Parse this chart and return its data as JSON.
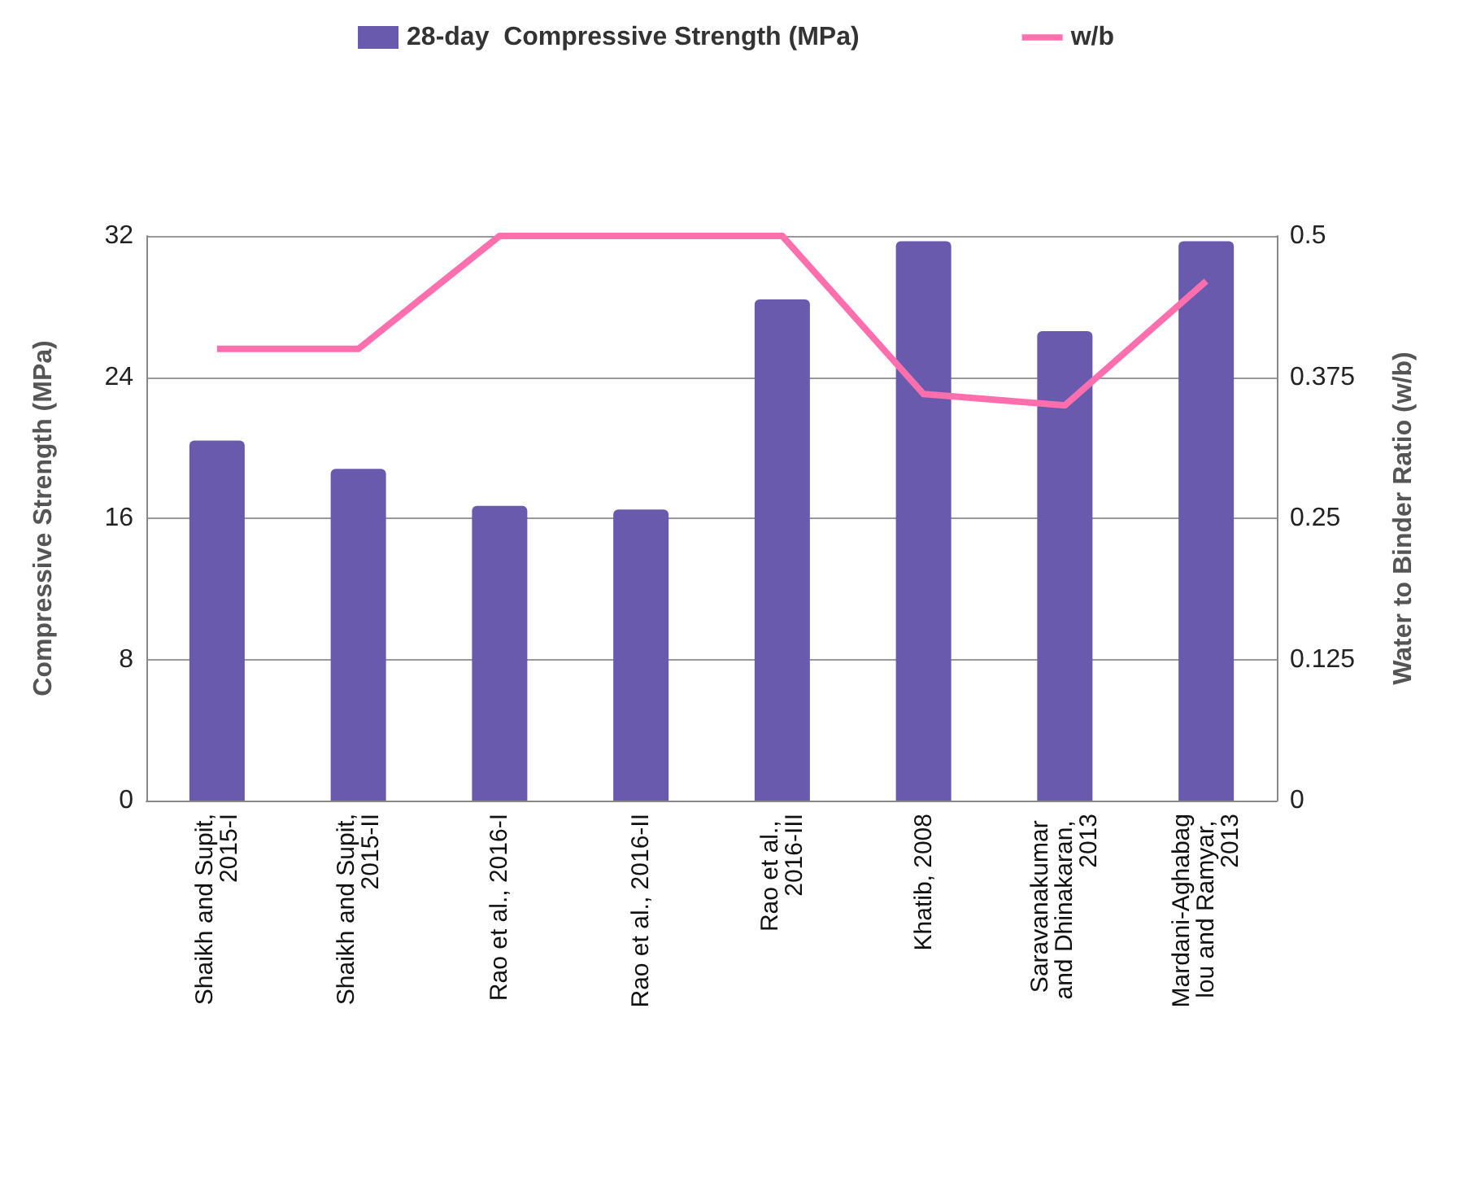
{
  "chart_data": {
    "type": "bar",
    "ylabel": "Compressive Strength (MPa)",
    "y2label": "Water to Binder Ratio (w/b)",
    "categories": [
      "Shaikh and Supit, 2015-I",
      "Shaikh and Supit, 2015-II",
      "Rao et al., 2016-I",
      "Rao et al., 2016-II",
      "Rao et al., 2016-III",
      "Khatib, 2008",
      "Saravanakumar and Dhinakaran, 2013",
      "Mardani-Aghabaglou and Ramyar, 2013"
    ],
    "series": [
      {
        "name": "28-day  Compressive Strength (MPa)",
        "color": "#6a5aad",
        "values": [
          20.4,
          18.8,
          16.7,
          16.5,
          28.4,
          31.7,
          26.6,
          31.7
        ]
      },
      {
        "name": "w/b",
        "type": "line",
        "axis": "y2",
        "color": "#ff6fae",
        "values": [
          0.4,
          0.4,
          0.5,
          0.5,
          0.5,
          0.36,
          0.35,
          0.46
        ]
      }
    ],
    "ylim": [
      0,
      32
    ],
    "yticks": [
      0,
      8,
      16,
      24,
      32
    ],
    "y2lim": [
      0,
      0.5
    ],
    "y2ticks": [
      0,
      0.125,
      0.25,
      0.375,
      0.5
    ],
    "grid": "y",
    "legend": "top",
    "marker": "none"
  }
}
